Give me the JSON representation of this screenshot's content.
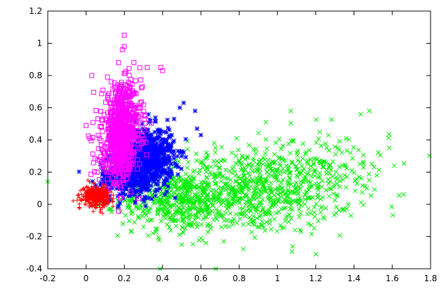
{
  "chart_data": {
    "type": "scatter",
    "title": "",
    "xlabel": "",
    "ylabel": "",
    "xlim": [
      -0.2,
      1.8
    ],
    "ylim": [
      -0.4,
      1.2
    ],
    "grid": false,
    "legend": "none",
    "x_ticks": [
      "-0.2",
      "0",
      "0.2",
      "0.4",
      "0.6",
      "0.8",
      "1",
      "1.2",
      "1.4",
      "1.6",
      "1.8"
    ],
    "y_ticks": [
      "-0.4",
      "-0.2",
      "0",
      "0.2",
      "0.4",
      "0.6",
      "0.8",
      "1",
      "1.2"
    ],
    "series": [
      {
        "marker": "x",
        "color": "#00ee00",
        "clusters": [
          {
            "cx": 0.82,
            "cy": 0.08,
            "sx": 0.28,
            "sy": 0.13,
            "n": 900
          },
          {
            "cx": 0.45,
            "cy": 0.02,
            "sx": 0.14,
            "sy": 0.09,
            "n": 300
          },
          {
            "cx": 1.25,
            "cy": 0.25,
            "sx": 0.17,
            "sy": 0.12,
            "n": 120
          }
        ],
        "points": [
          [
            1.07,
            0.58
          ],
          [
            1.48,
            0.58
          ],
          [
            1.61,
            0.24
          ],
          [
            1.48,
            0.15
          ],
          [
            1.52,
            0.18
          ],
          [
            0.94,
            0.51
          ],
          [
            0.67,
            0.38
          ],
          [
            0.5,
            -0.25
          ],
          [
            0.6,
            -0.21
          ],
          [
            0.72,
            -0.23
          ],
          [
            0.3,
            -0.14
          ]
        ]
      },
      {
        "marker": "*",
        "color": "#0000ff",
        "clusters": [
          {
            "cx": 0.32,
            "cy": 0.3,
            "sx": 0.07,
            "sy": 0.09,
            "n": 700
          },
          {
            "cx": 0.22,
            "cy": 0.17,
            "sx": 0.08,
            "sy": 0.07,
            "n": 300
          }
        ],
        "points": [
          [
            0.51,
            0.63
          ],
          [
            0.57,
            0.58
          ],
          [
            0.49,
            0.6
          ],
          [
            0.58,
            0.47
          ],
          [
            0.6,
            0.43
          ],
          [
            0.46,
            0.53
          ]
        ]
      },
      {
        "marker": "square",
        "color": "#ff00ff",
        "clusters": [
          {
            "cx": 0.19,
            "cy": 0.48,
            "sx": 0.05,
            "sy": 0.13,
            "n": 650
          },
          {
            "cx": 0.16,
            "cy": 0.3,
            "sx": 0.05,
            "sy": 0.1,
            "n": 200
          }
        ],
        "points": [
          [
            0.2,
            1.05
          ],
          [
            0.2,
            0.98
          ],
          [
            0.19,
            0.96
          ],
          [
            0.03,
            0.8
          ],
          [
            0.39,
            0.85
          ],
          [
            0.4,
            0.83
          ],
          [
            0.32,
            0.85
          ],
          [
            0.0,
            0.49
          ],
          [
            0.02,
            0.41
          ],
          [
            0.17,
            0.88
          ],
          [
            0.25,
            0.88
          ]
        ]
      },
      {
        "marker": "+",
        "color": "#ff0000",
        "clusters": [
          {
            "cx": 0.05,
            "cy": 0.05,
            "sx": 0.035,
            "sy": 0.03,
            "n": 350
          }
        ],
        "points": [
          [
            0.01,
            0.15
          ],
          [
            0.1,
            0.12
          ],
          [
            0.0,
            0.0
          ],
          [
            0.14,
            0.02
          ]
        ]
      }
    ]
  }
}
